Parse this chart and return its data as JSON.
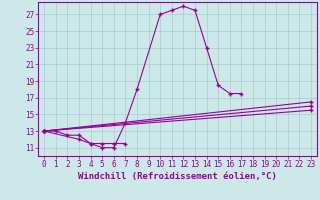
{
  "background_color": "#cce8e8",
  "grid_color": "#aacccc",
  "line_color": "#990099",
  "xlabel": "Windchill (Refroidissement éolien,°C)",
  "yticks": [
    11,
    13,
    15,
    17,
    19,
    21,
    23,
    25,
    27
  ],
  "xticks": [
    0,
    1,
    2,
    3,
    4,
    5,
    6,
    7,
    8,
    9,
    10,
    11,
    12,
    13,
    14,
    15,
    16,
    17,
    18,
    19,
    20,
    21,
    22,
    23
  ],
  "xlim": [
    -0.5,
    23.5
  ],
  "ylim": [
    10.0,
    28.5
  ],
  "main_x": [
    0,
    1,
    2,
    3,
    4,
    5,
    6,
    7,
    8,
    10,
    11,
    12,
    13,
    14,
    15,
    16,
    17
  ],
  "main_y": [
    13.0,
    13.0,
    12.5,
    12.5,
    11.5,
    11.0,
    11.0,
    14.0,
    18.0,
    27.0,
    27.5,
    28.0,
    27.5,
    23.0,
    18.5,
    17.5,
    17.5
  ],
  "s1_x": [
    0,
    3,
    4,
    5,
    6,
    7
  ],
  "s1_y": [
    13.0,
    12.0,
    11.5,
    11.5,
    11.5,
    11.5
  ],
  "line1_x": [
    0,
    23
  ],
  "line1_y": [
    13.0,
    15.5
  ],
  "line2_x": [
    0,
    23
  ],
  "line2_y": [
    13.0,
    16.0
  ],
  "line3_x": [
    0,
    23
  ],
  "line3_y": [
    13.0,
    16.5
  ],
  "markersize": 3,
  "linewidth": 0.8,
  "tick_fontsize": 5.5,
  "xlabel_fontsize": 6.5
}
